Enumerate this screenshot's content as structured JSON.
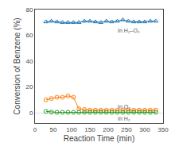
{
  "chart_data": {
    "type": "line",
    "xlabel": "Reaction Time (min)",
    "ylabel": "Conversion of Benzene (%)",
    "xlim": [
      0,
      350
    ],
    "ylim": [
      -8,
      80
    ],
    "xticks": [
      0,
      50,
      100,
      150,
      200,
      250,
      300,
      350
    ],
    "yticks": [
      0,
      20,
      40,
      60,
      80
    ],
    "grid": false,
    "series": [
      {
        "name": "In H₂–O₂",
        "marker": "triangle",
        "line_style": "solid",
        "x": [
          30,
          45,
          60,
          75,
          90,
          105,
          120,
          135,
          150,
          165,
          180,
          195,
          210,
          225,
          240,
          255,
          270,
          285,
          300,
          315,
          330
        ],
        "values": [
          70.5,
          71,
          70.5,
          70,
          70,
          70,
          70,
          71,
          71,
          70.5,
          70,
          71,
          70.5,
          71,
          72,
          71,
          70.5,
          70.5,
          70.5,
          71,
          71
        ]
      },
      {
        "name": "In O₂",
        "marker": "circle",
        "line_style": "solid",
        "x": [
          30,
          45,
          60,
          75,
          90,
          105,
          120,
          135,
          150,
          165,
          180,
          195,
          210,
          225,
          240,
          255,
          270,
          285,
          300,
          315,
          330
        ],
        "values": [
          10,
          11,
          12,
          12,
          13,
          12,
          3,
          2.5,
          2,
          2,
          2,
          2,
          2,
          2,
          2,
          2,
          2,
          2,
          2,
          2,
          2
        ]
      },
      {
        "name": "In H₂",
        "marker": "circle",
        "line_style": "solid",
        "x": [
          30,
          45,
          60,
          75,
          90,
          105,
          120,
          135,
          150,
          165,
          180,
          195,
          210,
          225,
          240,
          255,
          270,
          285,
          300,
          315,
          330
        ],
        "values": [
          1.0,
          0.5,
          0.3,
          0.3,
          0.3,
          0.3,
          0.3,
          0.3,
          0.3,
          0.3,
          0.3,
          0.3,
          0.3,
          0.3,
          0.3,
          0.3,
          0.3,
          0.3,
          0.3,
          0.3,
          0.3
        ]
      }
    ],
    "annotations": [
      {
        "text": "In H₂–O₂",
        "x": 222,
        "y": 64
      },
      {
        "text": "In O₂",
        "x": 222,
        "y": 4.5
      },
      {
        "text": "In H₂",
        "x": 222,
        "y": -4.5
      }
    ]
  }
}
